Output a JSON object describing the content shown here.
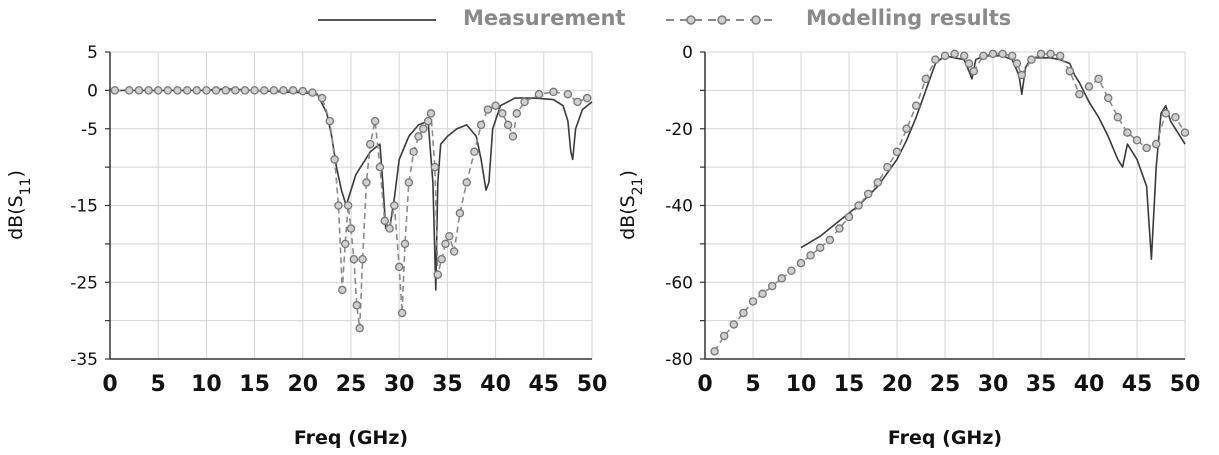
{
  "legend": {
    "measurement_label": "Measurement",
    "modelling_label": "Modelling results",
    "measurement_color": "#444444",
    "modelling_color": "#8a8a8a"
  },
  "chart_data": [
    {
      "type": "line",
      "title": "",
      "xlabel": "Freq (GHz)",
      "ylabel": "dB(S11)",
      "ylabel_main": "dB(S",
      "ylabel_sub": "11",
      "ylabel_end": ")",
      "xlim": [
        0,
        50
      ],
      "ylim": [
        -35,
        5
      ],
      "xticks": [
        0,
        5,
        10,
        15,
        20,
        25,
        30,
        35,
        40,
        45,
        50
      ],
      "yticks_labeled": [
        5,
        0,
        -5,
        -15,
        -25,
        -35
      ],
      "grid": true,
      "grid_y": [
        5,
        0,
        -5,
        -10,
        -15,
        -20,
        -25,
        -30,
        -35
      ],
      "series": [
        {
          "name": "Measurement",
          "style": "solid",
          "x": [
            0.5,
            5,
            10,
            12,
            15,
            18,
            20,
            21.5,
            22.5,
            23,
            23.5,
            24,
            24.5,
            25,
            25.5,
            26,
            26.5,
            27,
            27.5,
            28,
            28.3,
            28.6,
            29,
            29.5,
            30,
            31,
            32,
            33,
            33.5,
            33.8,
            34,
            34.3,
            35,
            36,
            37,
            38,
            38.5,
            39,
            39.3,
            39.7,
            40.5,
            42,
            44,
            46,
            47,
            47.5,
            47.8,
            48,
            48.3,
            49,
            50
          ],
          "y": [
            0,
            0,
            0,
            0.2,
            0,
            -0.2,
            -0.3,
            -0.5,
            -3,
            -6,
            -10,
            -13,
            -15,
            -13,
            -11,
            -10,
            -9,
            -8,
            -7.5,
            -7,
            -12,
            -18,
            -18,
            -14,
            -9,
            -6,
            -4.5,
            -4,
            -12,
            -26,
            -12,
            -7,
            -6,
            -5,
            -4.5,
            -6,
            -9,
            -13,
            -12,
            -5,
            -2,
            -1,
            -1,
            -1.2,
            -2,
            -4,
            -8,
            -9,
            -5,
            -2.5,
            -1.5
          ]
        },
        {
          "name": "Modelling results",
          "style": "dashed-circles",
          "x": [
            0.5,
            2,
            3,
            4,
            5,
            6,
            7,
            8,
            9,
            10,
            11,
            12,
            13,
            14,
            15,
            16,
            17,
            18,
            19,
            20,
            21,
            22,
            22.8,
            23.3,
            23.7,
            24.1,
            24.4,
            24.7,
            25,
            25.3,
            25.6,
            25.9,
            26.2,
            26.6,
            27,
            27.5,
            28,
            28.5,
            29,
            29.5,
            30,
            30.3,
            30.6,
            31,
            31.5,
            32,
            32.5,
            33,
            33.3,
            33.7,
            34,
            34.4,
            34.8,
            35.2,
            35.7,
            36.3,
            37,
            37.8,
            38.5,
            39.2,
            40,
            40.7,
            41.3,
            41.8,
            42.2,
            43,
            44.5,
            46,
            47.5,
            48.5,
            49.5
          ],
          "y": [
            0,
            0,
            0,
            0,
            0,
            0,
            0,
            0,
            0,
            0,
            0,
            0,
            0,
            0,
            0,
            0,
            0,
            0,
            0,
            -0.1,
            -0.3,
            -1,
            -4,
            -9,
            -15,
            -26,
            -20,
            -15,
            -18,
            -22,
            -28,
            -31,
            -22,
            -12,
            -7,
            -4,
            -10,
            -17,
            -18,
            -15,
            -23,
            -29,
            -20,
            -12,
            -8,
            -6,
            -5,
            -4,
            -3,
            -10,
            -24,
            -22,
            -20,
            -19,
            -21,
            -16,
            -12,
            -8,
            -4.5,
            -2.5,
            -2,
            -3,
            -4.5,
            -6,
            -3,
            -1.5,
            -0.5,
            -0.2,
            -0.5,
            -1.5,
            -1
          ]
        }
      ]
    },
    {
      "type": "line",
      "title": "",
      "xlabel": "Freq (GHz)",
      "ylabel": "dB(S21)",
      "ylabel_main": "dB(S",
      "ylabel_sub": "21",
      "ylabel_end": ")",
      "xlim": [
        0,
        50
      ],
      "ylim": [
        -80,
        0
      ],
      "xticks": [
        0,
        5,
        10,
        15,
        20,
        25,
        30,
        35,
        40,
        45,
        50
      ],
      "yticks_labeled": [
        0,
        -20,
        -40,
        -60,
        -80
      ],
      "grid": true,
      "grid_y": [
        0,
        -10,
        -20,
        -30,
        -40,
        -50,
        -60,
        -70,
        -80
      ],
      "series": [
        {
          "name": "Measurement",
          "style": "solid",
          "x": [
            10,
            12,
            14,
            16,
            18,
            20,
            21,
            22,
            23,
            24,
            25,
            26,
            27,
            27.5,
            27.8,
            28.2,
            29,
            30,
            31,
            32,
            32.7,
            33,
            33.4,
            34,
            35,
            36,
            37,
            38,
            38.5,
            39,
            40,
            41,
            42,
            43,
            43.5,
            44,
            45,
            46,
            46.5,
            47,
            47.5,
            48,
            48.5,
            49,
            50
          ],
          "y": [
            -51,
            -48,
            -44,
            -40,
            -35,
            -28,
            -23,
            -17,
            -10,
            -3,
            -1,
            -1.5,
            -2,
            -5,
            -7,
            -2,
            -1,
            -1,
            -1,
            -2,
            -6,
            -11,
            -4,
            -1.5,
            -1.5,
            -1.5,
            -2,
            -3,
            -6,
            -8,
            -13,
            -17,
            -22,
            -28,
            -30,
            -24,
            -28,
            -35,
            -54,
            -30,
            -16,
            -14,
            -18,
            -20,
            -24
          ]
        },
        {
          "name": "Modelling results",
          "style": "dashed-circles",
          "x": [
            1,
            2,
            3,
            4,
            5,
            6,
            7,
            8,
            9,
            10,
            11,
            12,
            13,
            14,
            15,
            16,
            17,
            18,
            19,
            20,
            21,
            22,
            23,
            24,
            25,
            26,
            27,
            27.5,
            28,
            29,
            30,
            31,
            32,
            32.5,
            33,
            34,
            35,
            36,
            37,
            38,
            39,
            40,
            41,
            42,
            43,
            44,
            45,
            46,
            47,
            48,
            49,
            50
          ],
          "y": [
            -78,
            -74,
            -71,
            -68,
            -65,
            -63,
            -61,
            -59,
            -57,
            -55,
            -53,
            -51,
            -49,
            -46,
            -43,
            -40,
            -37,
            -34,
            -30,
            -26,
            -20,
            -14,
            -7,
            -2,
            -1,
            -0.5,
            -1,
            -3,
            -5,
            -1,
            -0.5,
            -0.5,
            -1,
            -3,
            -6,
            -2,
            -0.5,
            -0.5,
            -1,
            -5,
            -11,
            -9,
            -7,
            -12,
            -17,
            -21,
            -23,
            -25,
            -24,
            -16,
            -17,
            -21
          ]
        }
      ]
    }
  ]
}
